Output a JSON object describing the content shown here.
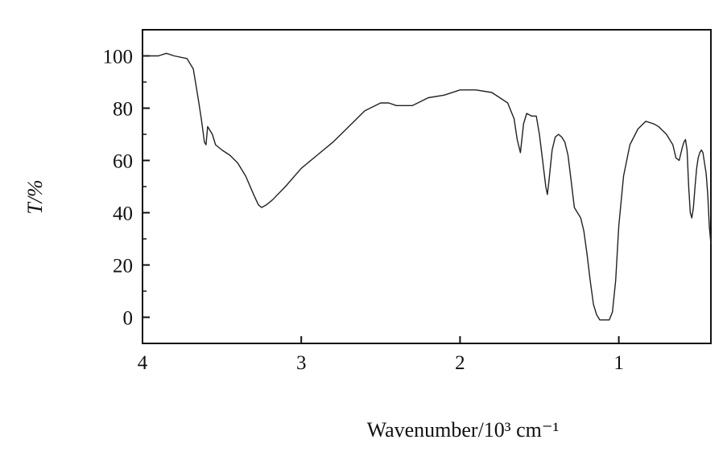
{
  "chart_data": {
    "type": "line",
    "xlabel": "Wavenumber/10³ cm⁻¹",
    "ylabel": "T/%",
    "xlim": [
      4,
      0.42
    ],
    "ylim": [
      -10,
      110
    ],
    "x_reversed": true,
    "grid": false,
    "x_ticks": [
      {
        "value": 4,
        "label": "4"
      },
      {
        "value": 3,
        "label": "3"
      },
      {
        "value": 2,
        "label": "2"
      },
      {
        "value": 1,
        "label": "1"
      }
    ],
    "y_ticks": [
      {
        "value": 100,
        "label": "100"
      },
      {
        "value": 80,
        "label": "80"
      },
      {
        "value": 60,
        "label": "60"
      },
      {
        "value": 40,
        "label": "40"
      },
      {
        "value": 20,
        "label": "20"
      },
      {
        "value": 0,
        "label": "0"
      }
    ],
    "series": [
      {
        "color": "#222222",
        "x": [
          4.0,
          3.9,
          3.85,
          3.8,
          3.72,
          3.68,
          3.65,
          3.63,
          3.61,
          3.6,
          3.59,
          3.58,
          3.56,
          3.54,
          3.5,
          3.45,
          3.4,
          3.35,
          3.3,
          3.27,
          3.25,
          3.22,
          3.18,
          3.1,
          3.0,
          2.9,
          2.8,
          2.7,
          2.6,
          2.5,
          2.45,
          2.4,
          2.3,
          2.2,
          2.1,
          2.0,
          1.95,
          1.9,
          1.8,
          1.7,
          1.66,
          1.64,
          1.62,
          1.6,
          1.58,
          1.55,
          1.52,
          1.5,
          1.48,
          1.46,
          1.45,
          1.44,
          1.42,
          1.4,
          1.38,
          1.36,
          1.34,
          1.32,
          1.3,
          1.28,
          1.26,
          1.24,
          1.22,
          1.2,
          1.18,
          1.16,
          1.14,
          1.12,
          1.1,
          1.08,
          1.06,
          1.04,
          1.02,
          1.0,
          0.97,
          0.93,
          0.88,
          0.83,
          0.78,
          0.75,
          0.7,
          0.66,
          0.64,
          0.62,
          0.6,
          0.59,
          0.58,
          0.57,
          0.56,
          0.55,
          0.54,
          0.53,
          0.52,
          0.51,
          0.5,
          0.49,
          0.48,
          0.47,
          0.46,
          0.45,
          0.44,
          0.43,
          0.42
        ],
        "y": [
          100,
          100,
          101,
          100,
          99,
          95,
          84,
          76,
          67,
          66,
          73,
          72,
          70,
          66,
          64,
          62,
          59,
          54,
          47,
          43,
          42,
          43,
          45,
          50,
          57,
          62,
          67,
          73,
          79,
          82,
          82,
          81,
          81,
          84,
          85,
          87,
          87,
          87,
          86,
          82,
          76,
          68,
          63,
          74,
          78,
          77,
          77,
          70,
          60,
          50,
          47,
          52,
          64,
          69,
          70,
          69,
          67,
          62,
          52,
          42,
          40,
          38,
          33,
          24,
          14,
          5,
          1,
          -1,
          -1,
          -1,
          -1,
          2,
          14,
          35,
          54,
          66,
          72,
          75,
          74,
          73,
          70,
          66,
          61,
          60,
          65,
          67,
          68,
          64,
          50,
          40,
          38,
          42,
          50,
          57,
          61,
          63,
          64,
          63,
          59,
          55,
          47,
          35,
          28
        ]
      }
    ]
  }
}
